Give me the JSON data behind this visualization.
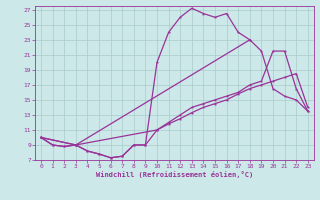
{
  "xlabel": "Windchill (Refroidissement éolien,°C)",
  "bg_color": "#cce8e8",
  "grid_color": "#aacccc",
  "line_color": "#993399",
  "xlim": [
    -0.5,
    23.5
  ],
  "ylim": [
    7,
    27.5
  ],
  "xticks": [
    0,
    1,
    2,
    3,
    4,
    5,
    6,
    7,
    8,
    9,
    10,
    11,
    12,
    13,
    14,
    15,
    16,
    17,
    18,
    19,
    20,
    21,
    22,
    23
  ],
  "yticks": [
    7,
    9,
    11,
    13,
    15,
    17,
    19,
    21,
    23,
    25,
    27
  ],
  "line1_x": [
    0,
    1,
    2,
    3,
    4,
    5,
    6,
    7,
    8,
    9,
    10,
    11,
    12,
    13,
    14,
    15,
    16,
    17,
    18
  ],
  "line1_y": [
    10,
    9,
    8.8,
    9,
    8.2,
    7.8,
    7.3,
    7.5,
    9,
    9,
    20,
    24,
    26,
    27.2,
    26.5,
    26,
    26.5,
    24,
    23
  ],
  "line2_x": [
    0,
    1,
    2,
    3,
    4,
    5,
    6,
    7,
    8,
    9,
    10,
    11,
    12,
    13,
    14,
    15,
    16,
    17,
    18,
    19,
    20,
    21,
    22,
    23
  ],
  "line2_y": [
    10,
    9,
    8.8,
    9,
    8.2,
    7.8,
    7.3,
    7.5,
    9,
    9,
    11,
    12,
    13,
    14,
    14.5,
    15,
    15.5,
    16,
    17,
    17.5,
    21.5,
    21.5,
    16.5,
    13.5
  ],
  "line3_x": [
    0,
    3,
    10,
    11,
    12,
    13,
    14,
    15,
    16,
    17,
    18,
    19,
    20,
    21,
    22,
    23
  ],
  "line3_y": [
    10,
    9,
    11,
    11.8,
    12.5,
    13.3,
    14,
    14.5,
    15,
    15.8,
    16.5,
    17,
    17.5,
    18,
    18.5,
    14
  ],
  "line4_x": [
    0,
    3,
    18,
    19,
    20,
    21,
    22,
    23
  ],
  "line4_y": [
    10,
    9,
    23,
    21.5,
    16.5,
    15.5,
    15,
    13.5
  ]
}
